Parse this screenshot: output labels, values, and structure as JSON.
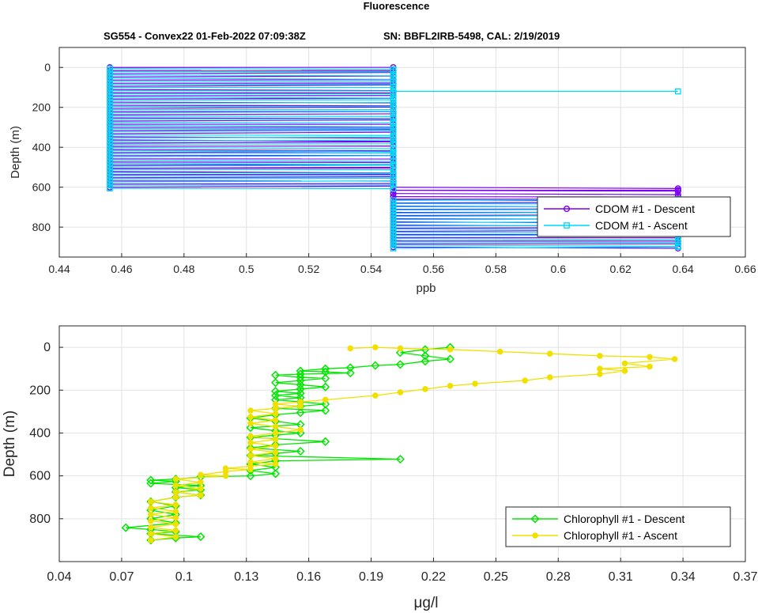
{
  "figure": {
    "title": "Fluorescence",
    "subtitle_left": "SG554 - Convex22 01-Feb-2022 07:09:38Z",
    "subtitle_right": "SN: BBFL2IRB-5498, CAL: 2/19/2019"
  },
  "chart_data": [
    {
      "type": "line",
      "title": "",
      "xlabel": "ppb",
      "ylabel": "Depth (m)",
      "xlim": [
        0.44,
        0.66
      ],
      "ylim": [
        950,
        -100
      ],
      "y_reversed": true,
      "grid": true,
      "xticks": [
        "0.44",
        "0.46",
        "0.48",
        "0.5",
        "0.52",
        "0.54",
        "0.56",
        "0.58",
        "0.6",
        "0.62",
        "0.64",
        "0.66"
      ],
      "yticks": [
        "0",
        "200",
        "400",
        "600",
        "800"
      ],
      "legend": {
        "position": "right",
        "entries": [
          "CDOM #1 - Descent",
          "CDOM #1 - Ascent"
        ]
      },
      "levels": [
        0.4562,
        0.5471,
        0.6384
      ],
      "series": [
        {
          "name": "CDOM #1 - Descent",
          "color": "#7b00f0",
          "marker": "circle",
          "depth_ranges": [
            {
              "from": 0,
              "to": 600,
              "levels": [
                0.4562,
                0.5471
              ]
            },
            {
              "from": 600,
              "to": 900,
              "levels": [
                0.5471,
                0.6384
              ]
            }
          ],
          "outliers": [
            {
              "x": 0.4562,
              "y": 505
            },
            {
              "x": 0.6384,
              "y": 615
            },
            {
              "x": 0.6384,
              "y": 660
            }
          ]
        },
        {
          "name": "CDOM #1 - Ascent",
          "color": "#00d8f2",
          "marker": "square",
          "depth_ranges": [
            {
              "from": 0,
              "to": 600,
              "levels": [
                0.4562,
                0.5471
              ]
            },
            {
              "from": 660,
              "to": 900,
              "levels": [
                0.5471,
                0.6384
              ]
            }
          ],
          "outliers": [
            {
              "x": 0.6384,
              "y": 120
            }
          ]
        }
      ]
    },
    {
      "type": "line",
      "title": "",
      "xlabel": "μg/l",
      "ylabel": "Depth (m)",
      "xlim": [
        0.04,
        0.37
      ],
      "ylim": [
        1000,
        -100
      ],
      "y_reversed": true,
      "grid": true,
      "xticks": [
        "0.04",
        "0.07",
        "0.1",
        "0.13",
        "0.16",
        "0.19",
        "0.22",
        "0.25",
        "0.28",
        "0.31",
        "0.34",
        "0.37"
      ],
      "yticks": [
        "0",
        "200",
        "400",
        "600",
        "800"
      ],
      "legend": {
        "position": "bottom-right",
        "entries": [
          "Chlorophyll #1 - Descent",
          "Chlorophyll #1 - Ascent"
        ]
      },
      "series": [
        {
          "name": "Chlorophyll #1 - Descent",
          "color": "#00e600",
          "marker": "diamond",
          "points": [
            [
              0.228,
              0
            ],
            [
              0.216,
              10
            ],
            [
              0.204,
              25
            ],
            [
              0.216,
              40
            ],
            [
              0.228,
              55
            ],
            [
              0.216,
              65
            ],
            [
              0.204,
              80
            ],
            [
              0.192,
              85
            ],
            [
              0.18,
              95
            ],
            [
              0.168,
              100
            ],
            [
              0.156,
              110
            ],
            [
              0.168,
              115
            ],
            [
              0.18,
              120
            ],
            [
              0.156,
              125
            ],
            [
              0.144,
              130
            ],
            [
              0.156,
              140
            ],
            [
              0.168,
              145
            ],
            [
              0.156,
              155
            ],
            [
              0.144,
              165
            ],
            [
              0.156,
              175
            ],
            [
              0.168,
              185
            ],
            [
              0.156,
              195
            ],
            [
              0.144,
              205
            ],
            [
              0.156,
              215
            ],
            [
              0.144,
              225
            ],
            [
              0.156,
              235
            ],
            [
              0.144,
              245
            ],
            [
              0.156,
              255
            ],
            [
              0.168,
              265
            ],
            [
              0.156,
              275
            ],
            [
              0.144,
              285
            ],
            [
              0.168,
              295
            ],
            [
              0.156,
              305
            ],
            [
              0.144,
              315
            ],
            [
              0.132,
              330
            ],
            [
              0.144,
              345
            ],
            [
              0.156,
              360
            ],
            [
              0.132,
              375
            ],
            [
              0.144,
              390
            ],
            [
              0.156,
              400
            ],
            [
              0.144,
              410
            ],
            [
              0.132,
              420
            ],
            [
              0.168,
              440
            ],
            [
              0.144,
              455
            ],
            [
              0.132,
              470
            ],
            [
              0.156,
              485
            ],
            [
              0.144,
              495
            ],
            [
              0.132,
              505
            ],
            [
              0.204,
              522
            ],
            [
              0.144,
              530
            ],
            [
              0.132,
              545
            ],
            [
              0.144,
              560
            ],
            [
              0.132,
              575
            ],
            [
              0.144,
              590
            ],
            [
              0.132,
              600
            ],
            [
              0.108,
              605
            ],
            [
              0.096,
              615
            ],
            [
              0.084,
              620
            ],
            [
              0.096,
              625
            ],
            [
              0.084,
              635
            ],
            [
              0.108,
              645
            ],
            [
              0.096,
              655
            ],
            [
              0.108,
              665
            ],
            [
              0.096,
              675
            ],
            [
              0.108,
              690
            ],
            [
              0.096,
              700
            ],
            [
              0.084,
              720
            ],
            [
              0.096,
              740
            ],
            [
              0.084,
              760
            ],
            [
              0.096,
              780
            ],
            [
              0.084,
              800
            ],
            [
              0.096,
              820
            ],
            [
              0.072,
              842
            ],
            [
              0.084,
              850
            ],
            [
              0.096,
              860
            ],
            [
              0.084,
              870
            ],
            [
              0.108,
              884
            ],
            [
              0.096,
              890
            ],
            [
              0.084,
              900
            ]
          ]
        },
        {
          "name": "Chlorophyll #1 - Ascent",
          "color": "#f0e000",
          "marker": "circle",
          "points": [
            [
              0.084,
              900
            ],
            [
              0.096,
              885
            ],
            [
              0.084,
              870
            ],
            [
              0.096,
              855
            ],
            [
              0.084,
              840
            ],
            [
              0.096,
              825
            ],
            [
              0.084,
              810
            ],
            [
              0.096,
              795
            ],
            [
              0.084,
              780
            ],
            [
              0.096,
              765
            ],
            [
              0.084,
              750
            ],
            [
              0.096,
              735
            ],
            [
              0.084,
              720
            ],
            [
              0.096,
              700
            ],
            [
              0.108,
              690
            ],
            [
              0.096,
              675
            ],
            [
              0.108,
              660
            ],
            [
              0.096,
              645
            ],
            [
              0.108,
              630
            ],
            [
              0.096,
              615
            ],
            [
              0.12,
              600
            ],
            [
              0.108,
              595
            ],
            [
              0.12,
              580
            ],
            [
              0.132,
              570
            ],
            [
              0.12,
              565
            ],
            [
              0.132,
              555
            ],
            [
              0.144,
              545
            ],
            [
              0.132,
              535
            ],
            [
              0.144,
              520
            ],
            [
              0.132,
              505
            ],
            [
              0.144,
              490
            ],
            [
              0.132,
              475
            ],
            [
              0.144,
              460
            ],
            [
              0.132,
              445
            ],
            [
              0.144,
              430
            ],
            [
              0.132,
              415
            ],
            [
              0.144,
              400
            ],
            [
              0.156,
              385
            ],
            [
              0.144,
              370
            ],
            [
              0.132,
              355
            ],
            [
              0.144,
              340
            ],
            [
              0.132,
              325
            ],
            [
              0.144,
              310
            ],
            [
              0.132,
              295
            ],
            [
              0.144,
              285
            ],
            [
              0.156,
              275
            ],
            [
              0.144,
              265
            ],
            [
              0.156,
              255
            ],
            [
              0.168,
              245
            ],
            [
              0.192,
              225
            ],
            [
              0.204,
              210
            ],
            [
              0.216,
              195
            ],
            [
              0.228,
              180
            ],
            [
              0.24,
              170
            ],
            [
              0.264,
              155
            ],
            [
              0.276,
              140
            ],
            [
              0.3,
              125
            ],
            [
              0.312,
              110
            ],
            [
              0.3,
              100
            ],
            [
              0.324,
              90
            ],
            [
              0.312,
              75
            ],
            [
              0.336,
              55
            ],
            [
              0.324,
              45
            ],
            [
              0.3,
              40
            ],
            [
              0.276,
              30
            ],
            [
              0.252,
              20
            ],
            [
              0.228,
              10
            ],
            [
              0.204,
              5
            ],
            [
              0.192,
              0
            ],
            [
              0.18,
              5
            ]
          ]
        }
      ]
    }
  ]
}
